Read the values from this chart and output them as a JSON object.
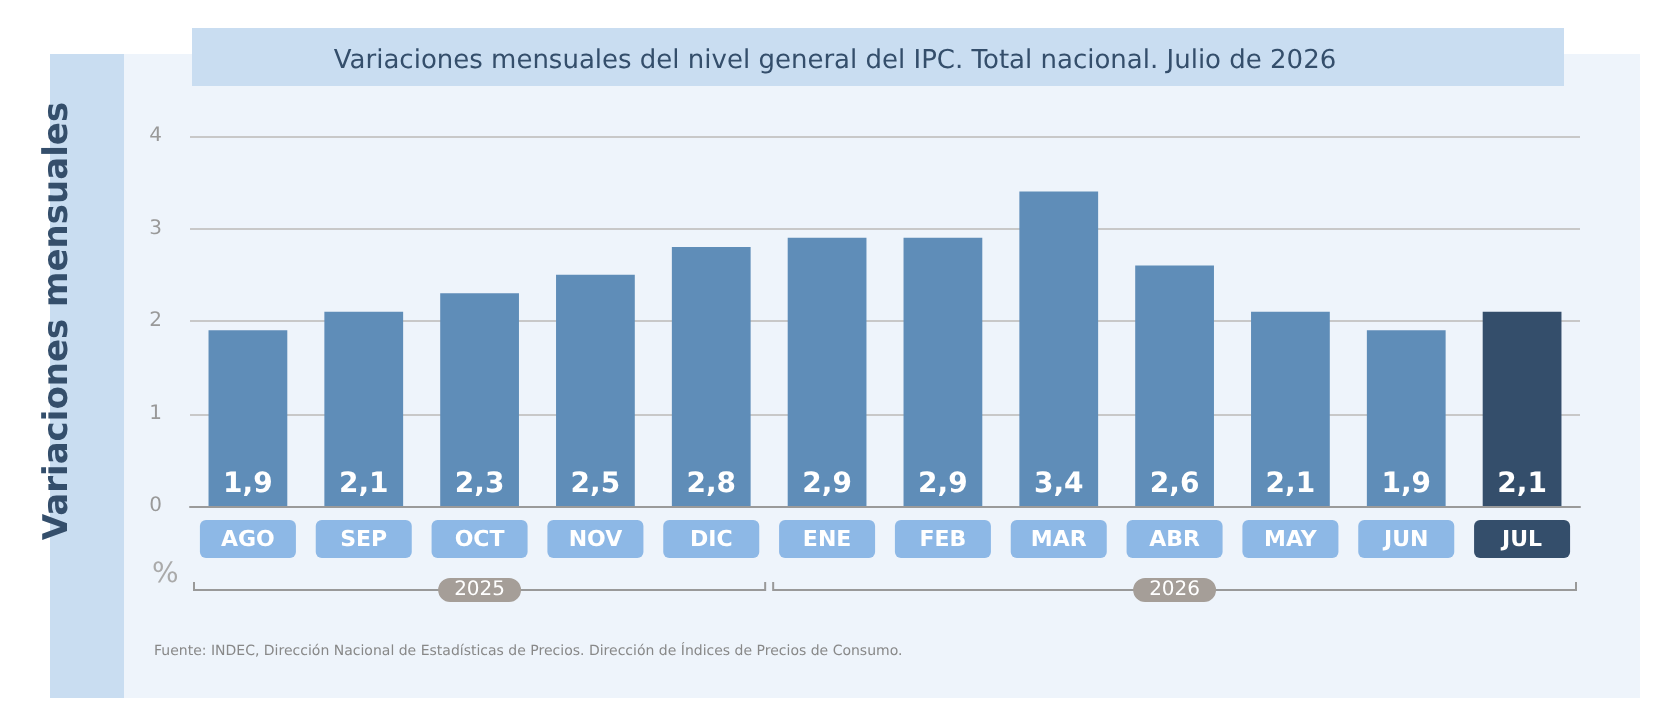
{
  "chart_data": {
    "type": "bar",
    "title": "Variaciones mensuales del nivel general del IPC. Total nacional. Julio de 2026",
    "ylabel": "Variaciones mensuales",
    "categories": [
      "AGO",
      "SEP",
      "OCT",
      "NOV",
      "DIC",
      "ENE",
      "FEB",
      "MAR",
      "ABR",
      "MAY",
      "JUN",
      "JUL"
    ],
    "values": [
      1.9,
      2.1,
      2.3,
      2.5,
      2.8,
      2.9,
      2.9,
      3.4,
      2.6,
      2.1,
      1.9,
      2.1
    ],
    "colors": [
      "#5f8db8",
      "#5f8db8",
      "#5f8db8",
      "#5f8db8",
      "#5f8db8",
      "#5f8db8",
      "#5f8db8",
      "#5f8db8",
      "#5f8db8",
      "#5f8db8",
      "#5f8db8",
      "#344e6b"
    ],
    "value_labels": [
      "1,9",
      "2,1",
      "2,3",
      "2,5",
      "2,8",
      "2,9",
      "2,9",
      "3,4",
      "2,6",
      "2,1",
      "1,9",
      "2,1"
    ],
    "ylim": [
      0,
      4
    ],
    "yticks": [
      0,
      1,
      2,
      3,
      4
    ],
    "grid": "y",
    "annotations": [
      "%",
      "2025",
      "2026",
      "Fuente: INDEC, Dirección Nacional de Estadísticas de Precios. Dirección de Índices de Precios de Consumo."
    ]
  }
}
